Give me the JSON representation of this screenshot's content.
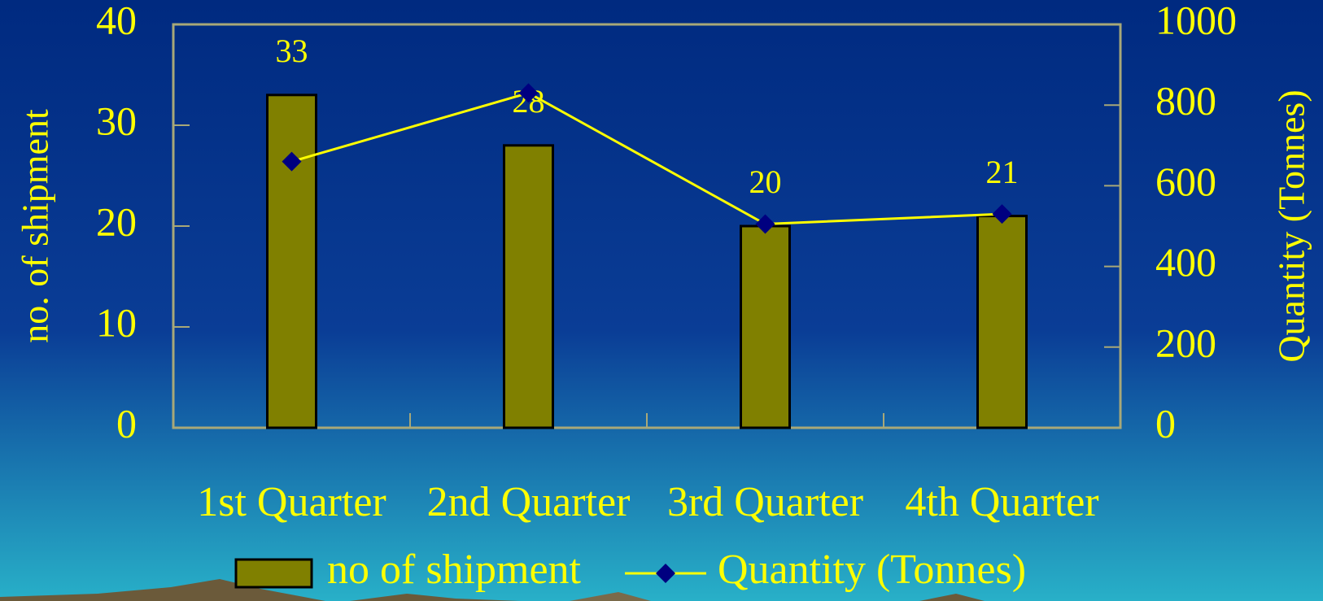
{
  "chart_data": {
    "type": "bar",
    "categories": [
      "1st Quarter",
      "2nd Quarter",
      "3rd Quarter",
      "4th Quarter"
    ],
    "series": [
      {
        "name": "no of shipment",
        "type": "bar",
        "color": "#808000",
        "values": [
          33,
          28,
          20,
          21
        ]
      },
      {
        "name": "Quantity (Tonnes)",
        "type": "line",
        "axis": "y2",
        "color": "#ffff00",
        "marker_color": "#000080",
        "values": [
          660,
          830,
          505,
          530
        ]
      }
    ],
    "ylabel": "no. of shipment",
    "y2label": "Quantity (Tonnes)",
    "ylim": [
      0,
      40
    ],
    "yticks": [
      0,
      10,
      20,
      30,
      40
    ],
    "y2lim": [
      0,
      1000
    ],
    "y2ticks": [
      0,
      200,
      400,
      600,
      800,
      1000
    ],
    "data_labels": true,
    "legend": "bottom"
  }
}
